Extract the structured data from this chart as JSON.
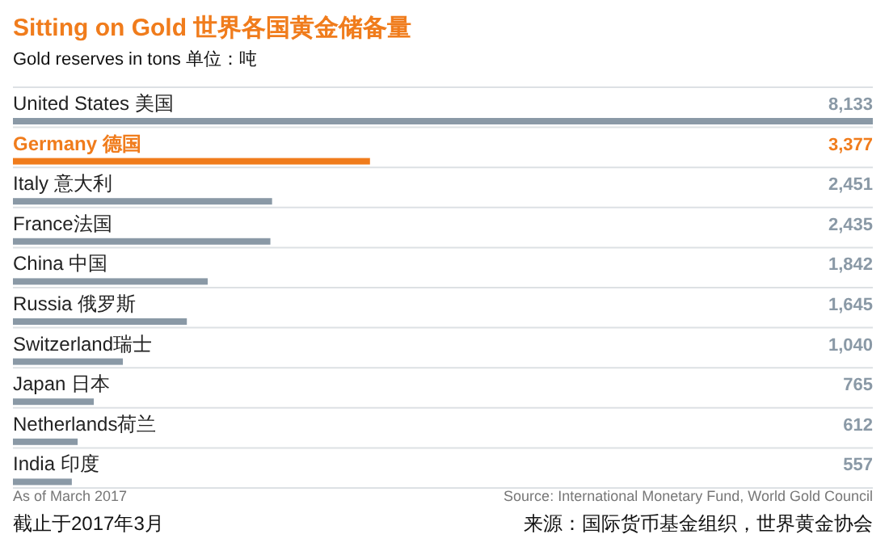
{
  "chart_data": {
    "type": "bar",
    "orientation": "horizontal",
    "title": "Sitting on Gold 世界各国黄金储备量",
    "subtitle": "Gold reserves in tons 单位：吨",
    "categories": [
      "United States 美国",
      "Germany 德国",
      "Italy 意大利",
      "France法国",
      "China 中国",
      "Russia 俄罗斯",
      "Switzerland瑞士",
      "Japan 日本",
      "Netherlands荷兰",
      "India 印度"
    ],
    "values": [
      8133,
      3377,
      2451,
      2435,
      1842,
      1645,
      1040,
      765,
      612,
      557
    ],
    "value_labels": [
      "8,133",
      "3,377",
      "2,451",
      "2,435",
      "1,842",
      "1,645",
      "1,040",
      "765",
      "612",
      "557"
    ],
    "colors": [
      "#8a99a6",
      "#f07c1c",
      "#8a99a6",
      "#8a99a6",
      "#8a99a6",
      "#8a99a6",
      "#8a99a6",
      "#8a99a6",
      "#8a99a6",
      "#8a99a6"
    ],
    "annotations": [
      "As of March 2017",
      "截止于2017年3月",
      "Source: International Monetary Fund, World Gold Council",
      "来源：国际货币基金组织，世界黄金协会"
    ]
  }
}
